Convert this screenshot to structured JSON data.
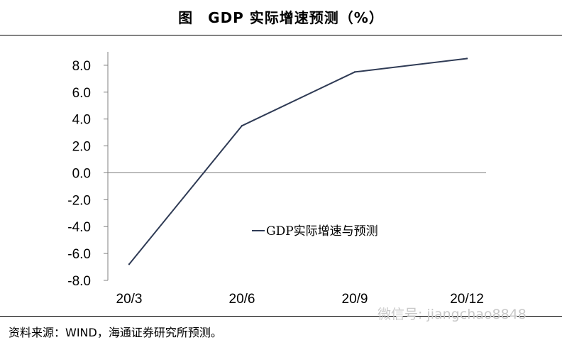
{
  "title": "图　GDP 实际增速预测（%）",
  "source": "资料来源：WIND，海通证券研究所预测。",
  "watermark": "微信号: jiangchao8848",
  "chart_data": {
    "type": "line",
    "title": "图　GDP 实际增速预测（%）",
    "categories": [
      "20/3",
      "20/6",
      "20/9",
      "20/12"
    ],
    "series": [
      {
        "name": "GDP实际增速与预测",
        "values": [
          -6.8,
          3.5,
          7.5,
          8.5
        ],
        "color": "#2f3b55"
      }
    ],
    "y_ticks": [
      "8.0",
      "6.0",
      "4.0",
      "2.0",
      "0.0",
      "-2.0",
      "-4.0",
      "-6.0",
      "-8.0"
    ],
    "ylim": [
      -8,
      9
    ],
    "xlabel": "",
    "ylabel": "",
    "grid": false,
    "legend_position": "center-right",
    "axis_color": "#808080"
  }
}
